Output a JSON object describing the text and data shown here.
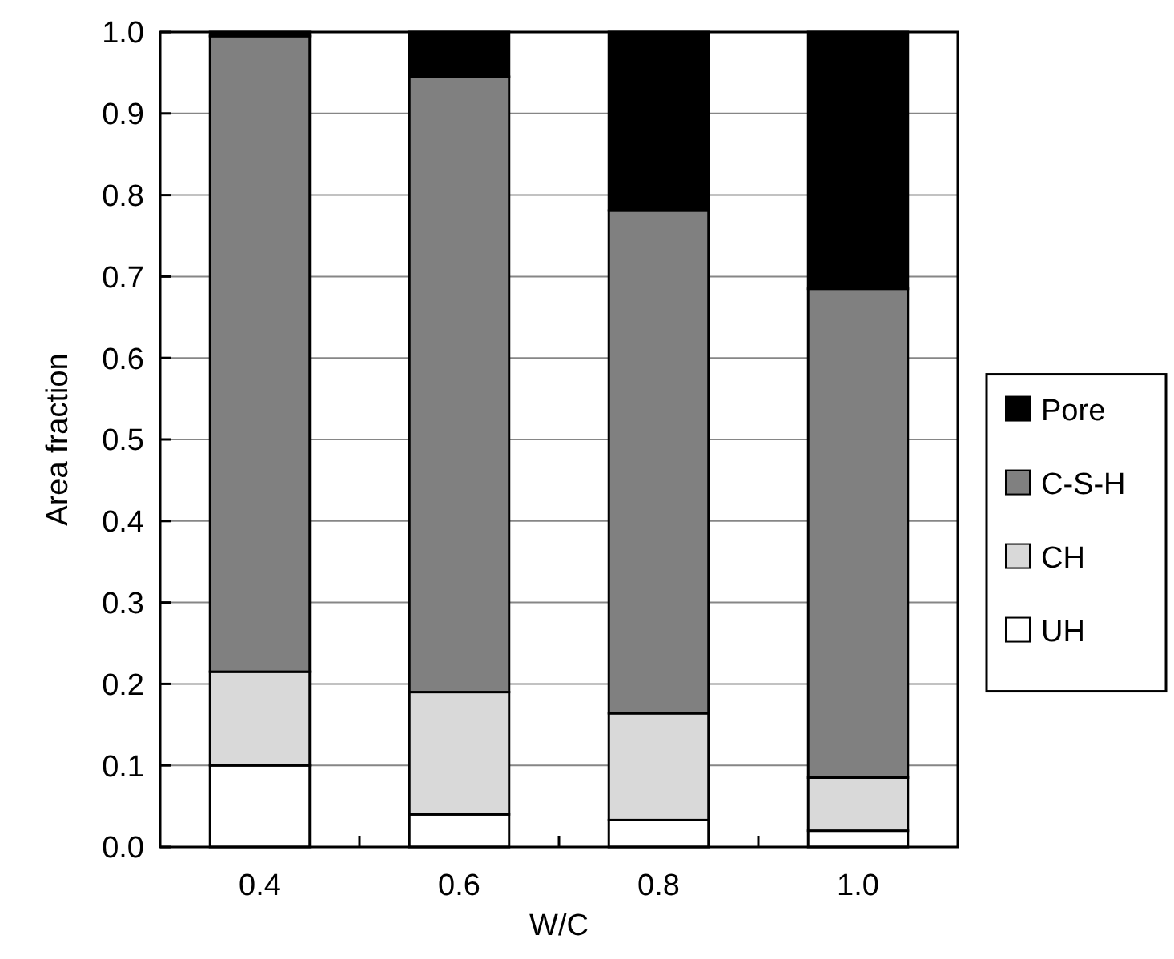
{
  "chart_data": {
    "type": "bar",
    "stacked": true,
    "xlabel": "W/C",
    "ylabel": "Area fraction",
    "categories": [
      "0.4",
      "0.6",
      "0.8",
      "1.0"
    ],
    "series": [
      {
        "name": "UH",
        "color": "#ffffff",
        "values": [
          0.1,
          0.04,
          0.033,
          0.02
        ]
      },
      {
        "name": "CH",
        "color": "#d9d9d9",
        "values": [
          0.115,
          0.15,
          0.131,
          0.065
        ]
      },
      {
        "name": "C-S-H",
        "color": "#808080",
        "values": [
          0.78,
          0.755,
          0.617,
          0.6
        ]
      },
      {
        "name": "Pore",
        "color": "#000000",
        "values": [
          0.005,
          0.055,
          0.219,
          0.315
        ]
      }
    ],
    "ylim": [
      0,
      1
    ],
    "yticks": [
      {
        "value": 0,
        "label": "0.0"
      },
      {
        "value": 0.1,
        "label": "0.1"
      },
      {
        "value": 0.2,
        "label": "0.2"
      },
      {
        "value": 0.3,
        "label": "0.3"
      },
      {
        "value": 0.4,
        "label": "0.4"
      },
      {
        "value": 0.5,
        "label": "0.5"
      },
      {
        "value": 0.6,
        "label": "0.6"
      },
      {
        "value": 0.7,
        "label": "0.7"
      },
      {
        "value": 0.8,
        "label": "0.8"
      },
      {
        "value": 0.9,
        "label": "0.9"
      },
      {
        "value": 1,
        "label": "1.0"
      }
    ],
    "grid": "y",
    "legend": "right"
  }
}
